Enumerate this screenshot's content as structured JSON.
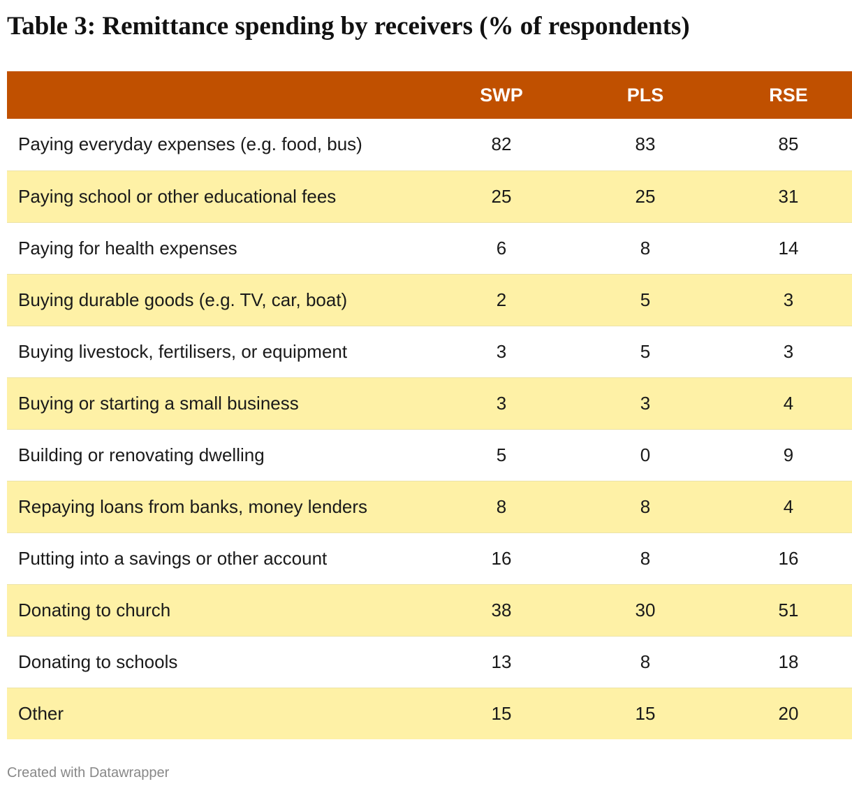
{
  "chart_data": {
    "type": "table",
    "title": "Table 3: Remittance spending by receivers (% of respondents)",
    "columns": [
      "",
      "SWP",
      "PLS",
      "RSE"
    ],
    "rows": [
      {
        "label": "Paying everyday expenses (e.g. food, bus)",
        "values": [
          82,
          83,
          85
        ]
      },
      {
        "label": "Paying school or other educational fees",
        "values": [
          25,
          25,
          31
        ]
      },
      {
        "label": "Paying for health expenses",
        "values": [
          6,
          8,
          14
        ]
      },
      {
        "label": "Buying durable goods (e.g. TV, car, boat)",
        "values": [
          2,
          5,
          3
        ]
      },
      {
        "label": "Buying livestock, fertilisers, or equipment",
        "values": [
          3,
          5,
          3
        ]
      },
      {
        "label": "Buying or starting a small business",
        "values": [
          3,
          3,
          4
        ]
      },
      {
        "label": "Building or renovating dwelling",
        "values": [
          5,
          0,
          9
        ]
      },
      {
        "label": "Repaying loans from banks, money lenders",
        "values": [
          8,
          8,
          4
        ]
      },
      {
        "label": "Putting into a savings or other account",
        "values": [
          16,
          8,
          16
        ]
      },
      {
        "label": "Donating to church",
        "values": [
          38,
          30,
          51
        ]
      },
      {
        "label": "Donating to schools",
        "values": [
          13,
          8,
          18
        ]
      },
      {
        "label": "Other",
        "values": [
          15,
          15,
          20
        ]
      }
    ],
    "colors": {
      "header_background": "#c05000",
      "header_text": "#ffffff",
      "stripe": "#fef1a6",
      "row_background": "#ffffff"
    }
  },
  "footer": "Created with Datawrapper"
}
